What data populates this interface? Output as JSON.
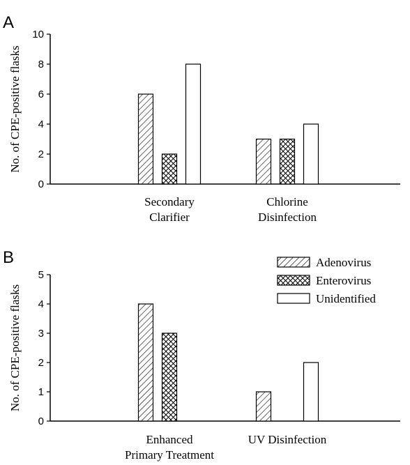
{
  "chart_data": [
    {
      "panel": "A",
      "type": "bar",
      "ylabel": "No. of CPE-positive flasks",
      "ylim": [
        0,
        10
      ],
      "yticks": [
        0,
        2,
        4,
        6,
        8,
        10
      ],
      "categories": [
        [
          "Secondary",
          "Clarifier"
        ],
        [
          "Chlorine",
          "Disinfection"
        ]
      ],
      "series": [
        {
          "name": "Adenovirus",
          "values": [
            6,
            3
          ]
        },
        {
          "name": "Enterovirus",
          "values": [
            2,
            3
          ]
        },
        {
          "name": "Unidentified",
          "values": [
            8,
            4
          ]
        }
      ]
    },
    {
      "panel": "B",
      "type": "bar",
      "ylabel": "No. of CPE-positive flasks",
      "ylim": [
        0,
        5
      ],
      "yticks": [
        0,
        1,
        2,
        3,
        4,
        5
      ],
      "categories": [
        [
          "Enhanced",
          "Primary Treatment"
        ],
        [
          "UV Disinfection"
        ]
      ],
      "series": [
        {
          "name": "Adenovirus",
          "values": [
            4,
            1
          ]
        },
        {
          "name": "Enterovirus",
          "values": [
            3,
            0
          ]
        },
        {
          "name": "Unidentified",
          "values": [
            0,
            2
          ]
        }
      ],
      "legend": {
        "position": "top-right",
        "entries": [
          {
            "label": "Adenovirus",
            "pattern": "diagonal-hatch"
          },
          {
            "label": "Enterovirus",
            "pattern": "cross-hatch"
          },
          {
            "label": "Unidentified",
            "pattern": "none"
          }
        ]
      }
    }
  ]
}
